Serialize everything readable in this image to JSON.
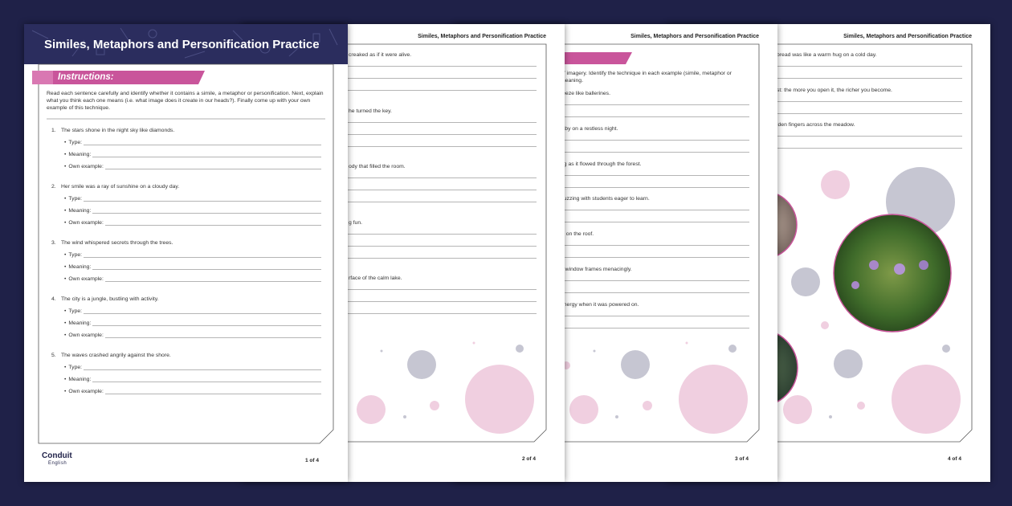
{
  "page1": {
    "title": "Similes, Metaphors and Personification Practice",
    "instructions_heading": "Instructions:",
    "instructions": "Read each sentence carefully and identify whether it contains a simile, a metaphor or personification. Next, explain what you think each one means (i.e. what image does it create in our heads?). Finally come up with your own example of this technique.",
    "questions": [
      {
        "number": "1.",
        "text": "The stars shone in the night sky like diamonds.",
        "fields": [
          "Type:",
          "Meaning:",
          "Own example:"
        ]
      },
      {
        "number": "2.",
        "text": "Her smile was a ray of sunshine on a cloudy day.",
        "fields": [
          "Type:",
          "Meaning:",
          "Own example:"
        ]
      },
      {
        "number": "3.",
        "text": "The wind whispered secrets through the trees.",
        "fields": [
          "Type:",
          "Meaning:",
          "Own example:"
        ]
      },
      {
        "number": "4.",
        "text": "The city is a jungle, bustling with activity.",
        "fields": [
          "Type:",
          "Meaning:",
          "Own example:"
        ]
      },
      {
        "number": "5.",
        "text": "The waves crashed angrily against the shore.",
        "fields": [
          "Type:",
          "Meaning:",
          "Own example:"
        ]
      }
    ],
    "logo": "Conduit",
    "logo_sub": "English",
    "page_number": "1 of 4"
  },
  "page2": {
    "header": "Similes, Metaphors and Personification Practice",
    "items": [
      "creaked as if it were alive.",
      "he turned the key.",
      "ody that filled the room.",
      "g fun.",
      "rface of the calm lake."
    ],
    "page_number": "2 of 4"
  },
  "page3": {
    "header": "Similes, Metaphors and Personification Practice",
    "instruction_lines": [
      "of imagery. Identify the technique in each example (simile, metaphor or",
      "meaning."
    ],
    "items": [
      "reeze like ballerines.",
      "laby on a restless night.",
      "ng as it flowed through the forest.",
      "buzzing with students eager to learn.",
      "ly on the roof.",
      "e window frames menacingly.",
      "energy when it was powered on."
    ],
    "page_number": "3 of 4"
  },
  "page4": {
    "header": "Similes, Metaphors and Personification Practice",
    "items": [
      "bread was like a warm hug on a cold day.",
      "st: the more you open it, the richer you become.",
      "lden fingers across the meadow."
    ],
    "page_number": "4 of 4"
  }
}
